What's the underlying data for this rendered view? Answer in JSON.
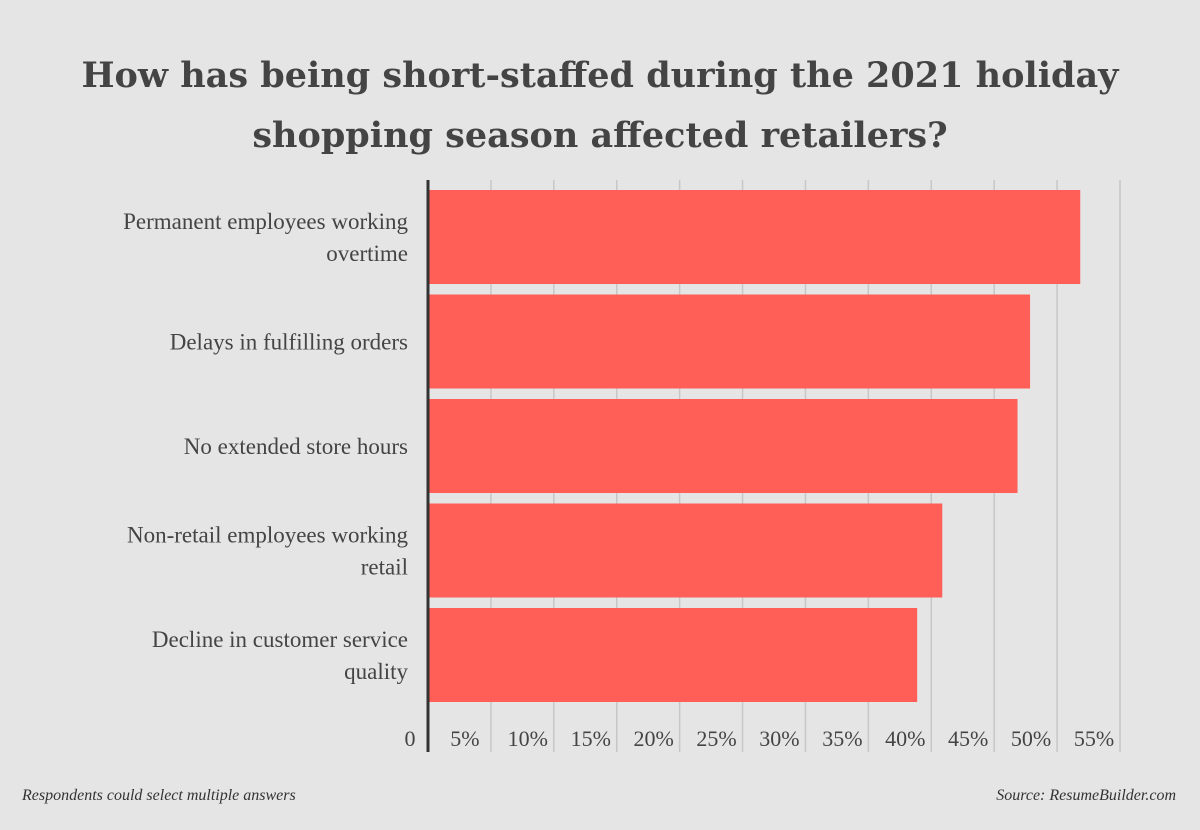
{
  "title_lines": [
    "How has being short-staffed during the 2021 holiday",
    "shopping season affected retailers?"
  ],
  "footnote": "Respondents could select multiple answers",
  "source": "Source: ResumeBuilder.com",
  "colors": {
    "bar": "#ff5f57",
    "grid": "#c7c7c7",
    "axis": "#333333",
    "text": "#444444",
    "background": "#e5e5e5"
  },
  "chart_data": {
    "type": "bar",
    "orientation": "horizontal",
    "categories": [
      [
        "Permanent employees working",
        "overtime"
      ],
      [
        "Delays in fulfilling orders"
      ],
      [
        "No extended store hours"
      ],
      [
        "Non-retail employees working",
        "retail"
      ],
      [
        "Decline in customer service",
        "quality"
      ]
    ],
    "values": [
      52,
      48,
      47,
      41,
      39
    ],
    "xlim": [
      0,
      55
    ],
    "x_ticks": [
      0,
      5,
      10,
      15,
      20,
      25,
      30,
      35,
      40,
      45,
      50,
      55
    ],
    "x_tick_labels": [
      "0",
      "5%",
      "10%",
      "15%",
      "20%",
      "25%",
      "30%",
      "35%",
      "40%",
      "45%",
      "50%",
      "55%"
    ],
    "grid": true,
    "legend": false
  }
}
